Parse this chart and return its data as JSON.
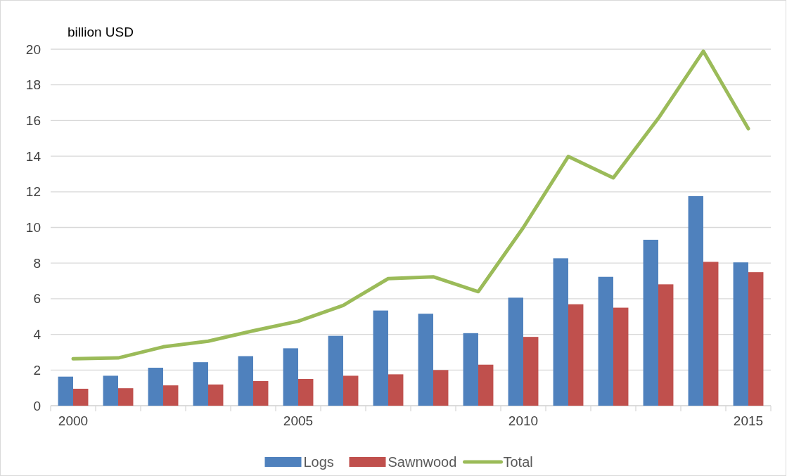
{
  "chart_data": {
    "type": "bar",
    "ylabel": "billion USD",
    "categories": [
      "2000",
      null,
      null,
      null,
      null,
      "2005",
      null,
      null,
      null,
      null,
      "2010",
      null,
      null,
      null,
      null,
      "2015"
    ],
    "series": [
      {
        "name": "Logs",
        "color": "#4f81bd",
        "values": [
          1.63,
          1.68,
          2.13,
          2.44,
          2.78,
          3.22,
          3.92,
          5.34,
          5.16,
          4.07,
          6.06,
          8.27,
          7.23,
          9.31,
          11.76,
          8.04
        ]
      },
      {
        "name": "Sawnwood",
        "color": "#c0504d",
        "values": [
          0.95,
          0.98,
          1.14,
          1.19,
          1.38,
          1.5,
          1.68,
          1.76,
          2.0,
          2.3,
          3.86,
          5.69,
          5.5,
          6.81,
          8.07,
          7.49
        ]
      },
      {
        "name": "Total",
        "type": "line",
        "color": "#9bbb59",
        "values": [
          2.63,
          2.68,
          3.3,
          3.62,
          4.2,
          4.74,
          5.63,
          7.13,
          7.23,
          6.4,
          9.99,
          13.98,
          12.78,
          16.12,
          19.89,
          15.54
        ]
      }
    ],
    "ylim": [
      0,
      20
    ],
    "yticks": [
      0,
      2,
      4,
      6,
      8,
      10,
      12,
      14,
      16,
      18,
      20
    ],
    "grid": "y",
    "legend": "bottom"
  }
}
